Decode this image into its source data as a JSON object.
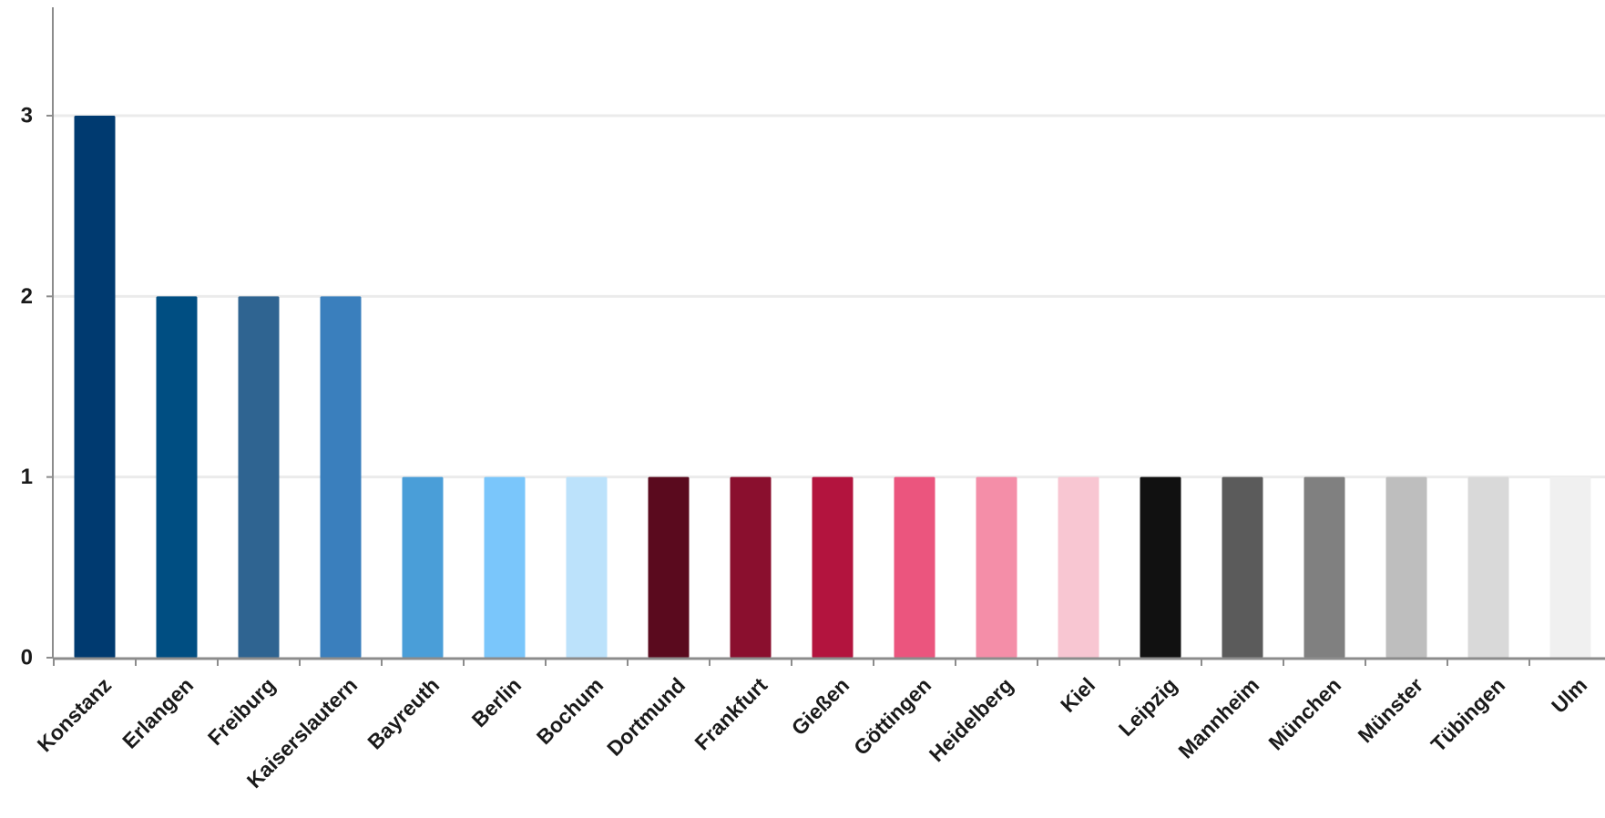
{
  "chart_data": {
    "type": "bar",
    "title": "",
    "xlabel": "",
    "ylabel": "",
    "ylim": [
      0,
      3.6
    ],
    "yticks": [
      0,
      1,
      2,
      3
    ],
    "grid": true,
    "legend": "none",
    "categories": [
      "Konstanz",
      "Erlangen",
      "Freiburg",
      "Kaiserslautern",
      "Bayreuth",
      "Berlin",
      "Bochum",
      "Dortmund",
      "Frankfurt",
      "Gießen",
      "Göttingen",
      "Heidelberg",
      "Kiel",
      "Leipzig",
      "Mannheim",
      "München",
      "Münster",
      "Tübingen",
      "Ulm"
    ],
    "values": [
      3,
      2,
      2,
      2,
      1,
      1,
      1,
      1,
      1,
      1,
      1,
      1,
      1,
      1,
      1,
      1,
      1,
      1,
      1
    ],
    "colors": [
      "#003a70",
      "#004e82",
      "#2f6491",
      "#3a7fbd",
      "#4a9ed8",
      "#7ac6fb",
      "#bce2fb",
      "#5a0a1e",
      "#8a0f2e",
      "#b3143e",
      "#eb557e",
      "#f48ea8",
      "#f8c6d2",
      "#111111",
      "#5b5b5b",
      "#808080",
      "#bebebe",
      "#d9d9d9",
      "#f0f0f0"
    ]
  }
}
